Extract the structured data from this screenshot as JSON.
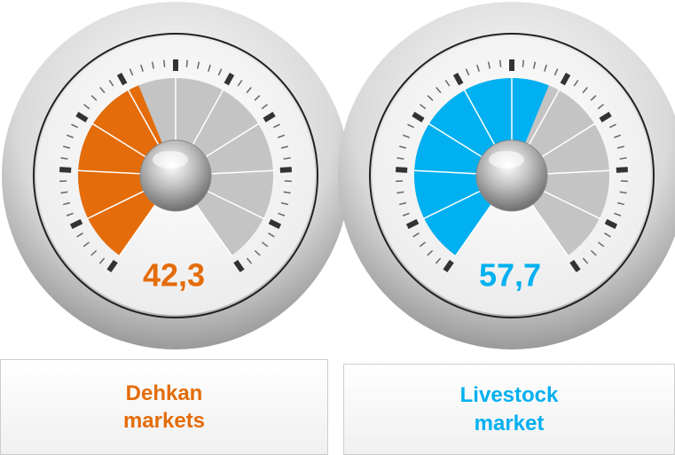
{
  "chart_data": [
    {
      "type": "gauge",
      "value": 42.3,
      "value_label": "42,3",
      "label": "Dehkan markets",
      "color": "#e46c0a",
      "ylim": [
        0,
        100
      ]
    },
    {
      "type": "gauge",
      "value": 57.7,
      "value_label": "57,7",
      "label": "Livestock market",
      "color": "#00b0f0",
      "ylim": [
        0,
        100
      ]
    }
  ]
}
